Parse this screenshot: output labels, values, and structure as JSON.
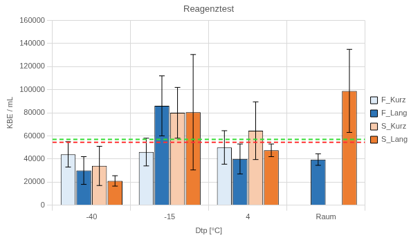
{
  "chart_data": {
    "type": "bar",
    "title": "Reagenztest",
    "x_label": "Dtp [°C]",
    "y_label": "KBE / mL",
    "categories": [
      "-40",
      "-15",
      "4",
      "Raum"
    ],
    "series": [
      {
        "name": "F_Kurz",
        "color": "#deebf7",
        "values": [
          44000,
          46000,
          50000,
          null
        ],
        "errors": [
          11000,
          12000,
          14500,
          null
        ]
      },
      {
        "name": "F_Lang",
        "color": "#2e75b6",
        "values": [
          30000,
          86000,
          40000,
          39500
        ],
        "errors": [
          12000,
          26000,
          13000,
          5000
        ]
      },
      {
        "name": "S_Kurz",
        "color": "#f8cbad",
        "values": [
          34000,
          80000,
          64500,
          null
        ],
        "errors": [
          17000,
          22000,
          25000,
          null
        ]
      },
      {
        "name": "S_Lang",
        "color": "#ed7d31",
        "values": [
          21000,
          80500,
          47500,
          99000
        ],
        "errors": [
          4500,
          50000,
          5500,
          36000
        ]
      }
    ],
    "reference_lines": [
      {
        "value": 57000,
        "color": "#33dd33",
        "line_style": "dashed"
      },
      {
        "value": 54500,
        "color": "#ff3333",
        "line_style": "dashed"
      }
    ],
    "ylim": [
      0,
      160000
    ],
    "yticks": [
      0,
      20000,
      40000,
      60000,
      80000,
      100000,
      120000,
      140000,
      160000
    ],
    "grid": true,
    "legend": "right"
  }
}
